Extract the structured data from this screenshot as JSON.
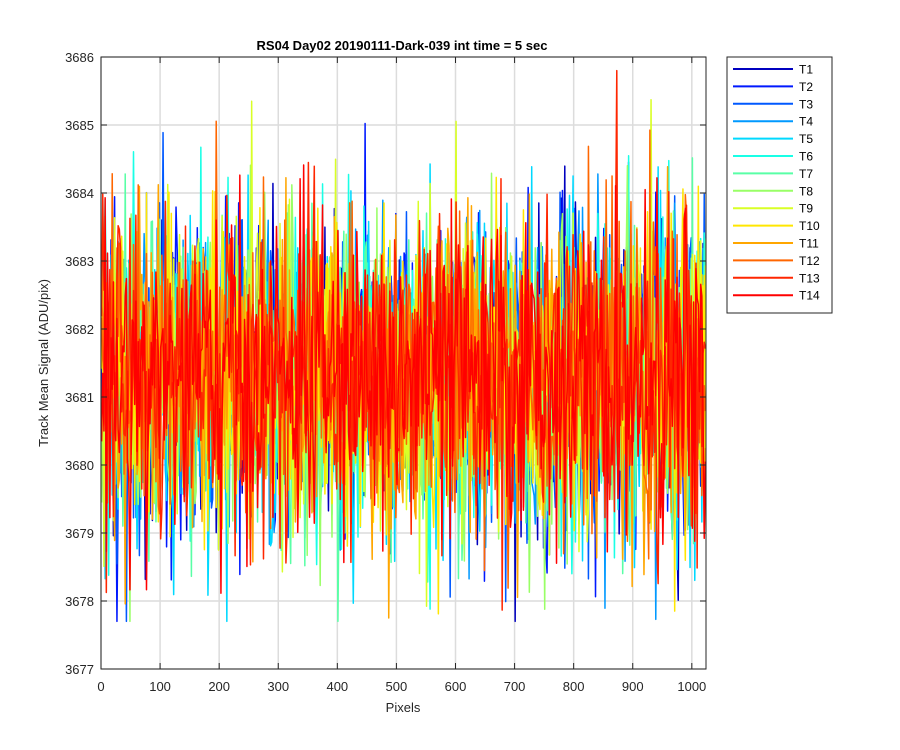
{
  "chart_data": {
    "type": "line",
    "title": "RS04 Day02 20190111-Dark-039 int time = 5 sec",
    "xlabel": "Pixels",
    "ylabel": "Track Mean Signal (ADU/pix)",
    "xlim": [
      0,
      1024
    ],
    "ylim": [
      3677,
      3686
    ],
    "x_ticks": [
      0,
      100,
      200,
      300,
      400,
      500,
      600,
      700,
      800,
      900,
      1000
    ],
    "y_ticks": [
      3677,
      3678,
      3679,
      3680,
      3681,
      3682,
      3683,
      3684,
      3685,
      3686
    ],
    "x_tick_labels": [
      "0",
      "100",
      "200",
      "300",
      "400",
      "500",
      "600",
      "700",
      "800",
      "900",
      "1000"
    ],
    "y_tick_labels": [
      "3677",
      "3678",
      "3679",
      "3680",
      "3681",
      "3682",
      "3683",
      "3684",
      "3685",
      "3686"
    ],
    "grid": true,
    "legend_position": "outside-top-right",
    "x_start": 1,
    "x_end": 1024,
    "noise_summary": {
      "mean": 3681.3,
      "typical_min": 3679.0,
      "typical_max": 3684.0,
      "observed_min": 3677.7,
      "observed_max": 3685.8
    },
    "series": [
      {
        "name": "T1",
        "color": "#0000bf"
      },
      {
        "name": "T2",
        "color": "#0019ff"
      },
      {
        "name": "T3",
        "color": "#0059ff"
      },
      {
        "name": "T4",
        "color": "#0099ff"
      },
      {
        "name": "T5",
        "color": "#00d9ff"
      },
      {
        "name": "T6",
        "color": "#19ffe6"
      },
      {
        "name": "T7",
        "color": "#59ffa6"
      },
      {
        "name": "T8",
        "color": "#99ff66"
      },
      {
        "name": "T9",
        "color": "#d9ff26"
      },
      {
        "name": "T10",
        "color": "#ffe600"
      },
      {
        "name": "T11",
        "color": "#ffa600"
      },
      {
        "name": "T12",
        "color": "#ff6600"
      },
      {
        "name": "T13",
        "color": "#ff2600"
      },
      {
        "name": "T14",
        "color": "#ff0000"
      }
    ]
  }
}
